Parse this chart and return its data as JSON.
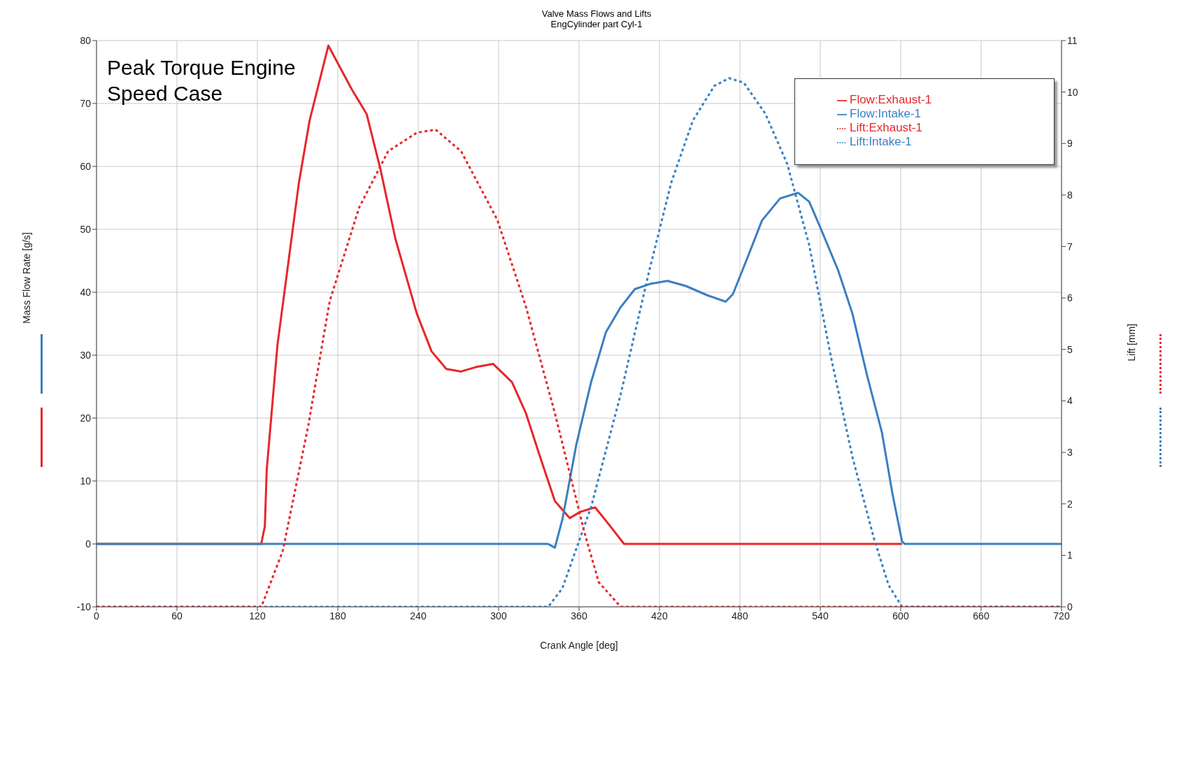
{
  "chart_data": {
    "type": "line",
    "title": "Valve Mass Flows and Lifts",
    "subtitle": "EngCylinder part Cyl-1",
    "xlabel": "Crank Angle [deg]",
    "ylabel": "Mass Flow Rate [g/s]",
    "y2label": "Lift [mm]",
    "annotations": [
      "Peak Torque Engine Speed Case"
    ],
    "xlim": [
      0,
      720
    ],
    "xticks": [
      0,
      60,
      120,
      180,
      240,
      300,
      360,
      420,
      480,
      540,
      600,
      660,
      720
    ],
    "ylim": [
      -10,
      80
    ],
    "yticks": [
      -10,
      0,
      10,
      20,
      30,
      40,
      50,
      60,
      70,
      80
    ],
    "y2lim": [
      0,
      11
    ],
    "y2ticks": [
      0,
      1,
      2,
      3,
      4,
      5,
      6,
      7,
      8,
      9,
      10,
      11
    ],
    "grid": true,
    "legend": "top right",
    "marker": "none",
    "series": [
      {
        "name": "Flow:Exhaust-1",
        "color": "#e8262a",
        "line_style": "solid",
        "x": [
          0,
          122.9,
          125.6,
          127,
          135,
          143,
          151,
          159,
          173,
          190.6,
          201.6,
          212,
          223,
          239,
          250,
          261,
          272,
          283,
          296,
          310,
          320.5,
          331,
          342,
          353,
          361,
          372,
          383,
          393.6,
          601
        ],
        "values": [
          0,
          0,
          2.8,
          11.8,
          31.6,
          44.5,
          57.4,
          67.3,
          79.2,
          72.2,
          68.3,
          59.4,
          48.5,
          36.6,
          30.6,
          27.8,
          27.4,
          28.1,
          28.6,
          25.7,
          20.7,
          13.8,
          6.8,
          4.1,
          5.1,
          5.8,
          2.9,
          0,
          0
        ]
      },
      {
        "name": "Flow:Intake-1",
        "color": "#3a7fc1",
        "line_style": "solid",
        "x": [
          0,
          336.8,
          342,
          347.6,
          358,
          369,
          380,
          391,
          401.7,
          412.6,
          426,
          439.6,
          455.9,
          469.4,
          474.8,
          485.7,
          496.5,
          510,
          523.5,
          531.7,
          539.8,
          553.3,
          564,
          575,
          586,
          594,
          601,
          603,
          720
        ],
        "values": [
          0,
          0,
          -0.6,
          3.9,
          15.8,
          25.7,
          33.6,
          37.6,
          40.5,
          41.3,
          41.8,
          41,
          39.5,
          38.5,
          39.7,
          45.5,
          51.4,
          54.9,
          55.8,
          54.4,
          50.4,
          43.5,
          36.6,
          26.7,
          17.7,
          7.8,
          0.4,
          0,
          0
        ]
      },
      {
        "name": "Lift:Intake-1",
        "color": "#3a7fc1",
        "line_style": "dotted",
        "axis": "y2",
        "x": [
          0,
          337,
          347.6,
          369,
          391,
          412.6,
          428.8,
          445,
          461,
          472,
          483,
          499,
          515.4,
          531.7,
          548,
          564,
          580,
          591,
          601,
          720
        ],
        "values": [
          0,
          0,
          0.36,
          1.94,
          4.12,
          6.55,
          8.24,
          9.45,
          10.12,
          10.27,
          10.18,
          9.58,
          8.6,
          7.03,
          4.85,
          2.91,
          1.33,
          0.42,
          0,
          0
        ]
      },
      {
        "name": "Lift:Exhaust-1",
        "color": "#e8262a",
        "line_style": "dotted",
        "axis": "y2",
        "x": [
          0,
          123,
          139,
          158,
          174,
          196,
          217.6,
          239,
          253,
          272,
          299,
          320.5,
          342,
          364,
          374.7,
          391,
          720
        ],
        "values": [
          0,
          0,
          1.09,
          3.52,
          5.94,
          7.76,
          8.85,
          9.21,
          9.27,
          8.85,
          7.52,
          5.82,
          3.76,
          1.45,
          0.48,
          0,
          0
        ]
      }
    ]
  }
}
